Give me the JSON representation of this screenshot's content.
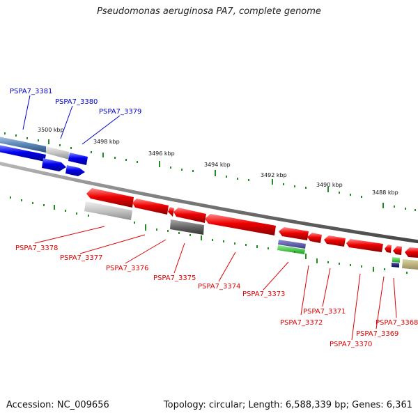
{
  "title": "Pseudomonas aeruginosa PA7, complete genome",
  "footer": {
    "accession": "Accession: NC_009656",
    "summary": "Topology: circular; Length: 6,588,339 bp; Genes: 6,361"
  },
  "colors": {
    "forward_label": "#0000cc",
    "reverse_label": "#dd0000",
    "forward_gene": "#0000ee",
    "reverse_gene": "#ee0000",
    "tick": "#228b22",
    "backbone": "#888888"
  },
  "ruler": {
    "unit": "kbp",
    "ticks": [
      "3500 kbp",
      "3498 kbp",
      "3496 kbp",
      "3494 kbp",
      "3492 kbp",
      "3490 kbp",
      "3488 kbp"
    ]
  },
  "genes": {
    "forward": [
      "PSPA7_3381",
      "PSPA7_3380",
      "PSPA7_3379"
    ],
    "reverse": [
      "PSPA7_3378",
      "PSPA7_3377",
      "PSPA7_3376",
      "PSPA7_3375",
      "PSPA7_3374",
      "PSPA7_3373",
      "PSPA7_3372",
      "PSPA7_3371",
      "PSPA7_3370",
      "PSPA7_3369",
      "PSPA7_3368"
    ]
  }
}
